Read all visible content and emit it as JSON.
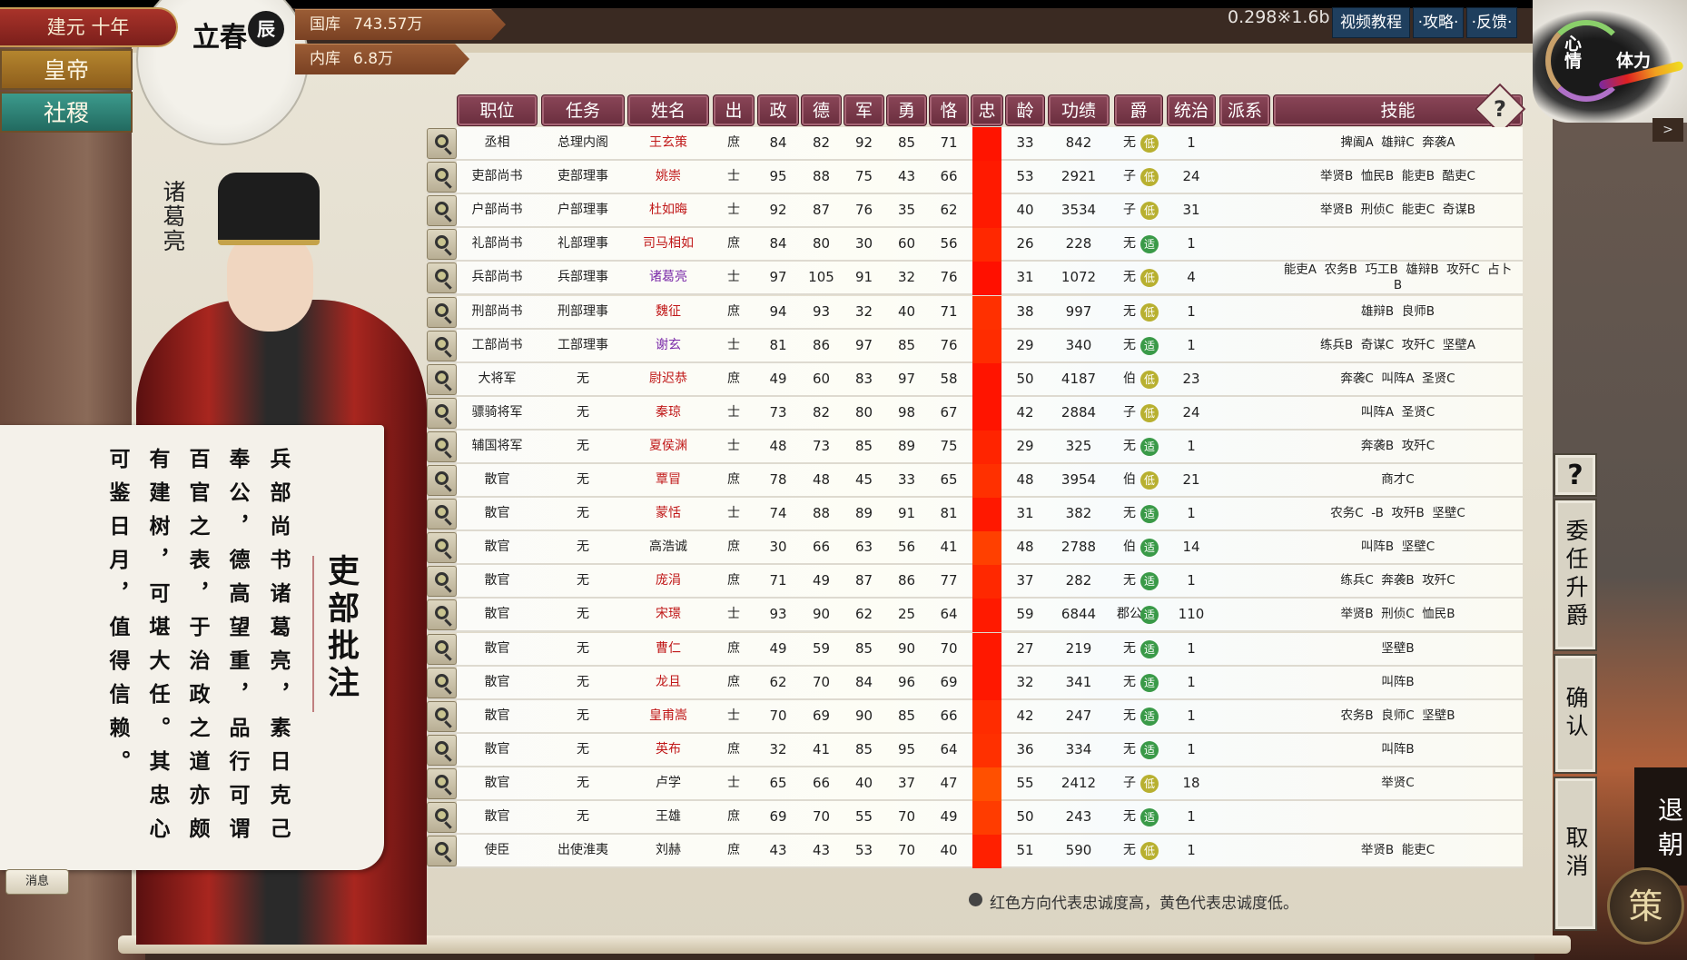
{
  "header": {
    "era": "建元 十年",
    "solar_term": "立春",
    "hour": "辰",
    "treasury": {
      "label": "国库",
      "value": "743.57万"
    },
    "inner_treasury": {
      "label": "内库",
      "value": "6.8万"
    },
    "version": "0.298※1.6b",
    "buttons": [
      "视频教程",
      "·攻略·",
      "·反馈·"
    ],
    "mood_label": "心情",
    "stamina_label": "体力"
  },
  "sidebar": {
    "emperor": "皇帝",
    "state": "社稷"
  },
  "official": {
    "name": "诸葛亮"
  },
  "memo": {
    "title": "吏部批注",
    "columns": [
      "兵部尚书诸葛亮，素日克己",
      "奉公，德高望重，品行可谓",
      "百官之表，于治政之道亦颇",
      "有建树，可堪大任。其忠心",
      "可鉴日月，值得信赖。"
    ]
  },
  "message_button": "消息",
  "table": {
    "headers": [
      "职位",
      "任务",
      "姓名",
      "出",
      "政",
      "德",
      "军",
      "勇",
      "恪",
      "忠",
      "龄",
      "功绩",
      "爵",
      "统治",
      "派系",
      "技能"
    ],
    "help": "?",
    "badge_colors": {
      "低": "#b8b030",
      "适": "#3a9a48"
    },
    "rows": [
      {
        "position": "丞相",
        "task": "总理内阁",
        "name": "王玄策",
        "name_color": "#c01818",
        "origin": "庶",
        "zheng": "84",
        "de": "82",
        "jun": "92",
        "yong": "85",
        "ke": "71",
        "loyalty_color": "#ff1400",
        "age": "33",
        "merit": "842",
        "rank": "无",
        "badge": "低",
        "rule": "1",
        "faction": "",
        "skills": "捭阖A  雄辩C  奔袭A"
      },
      {
        "position": "吏部尚书",
        "task": "吏部理事",
        "name": "姚崇",
        "name_color": "#c01818",
        "origin": "士",
        "zheng": "95",
        "de": "88",
        "jun": "75",
        "yong": "43",
        "ke": "66",
        "loyalty_color": "#ff1a00",
        "age": "53",
        "merit": "2921",
        "rank": "子",
        "badge": "低",
        "rule": "24",
        "faction": "",
        "skills": "举贤B  恤民B  能吏B  酷吏C"
      },
      {
        "position": "户部尚书",
        "task": "户部理事",
        "name": "杜如晦",
        "name_color": "#c01818",
        "origin": "士",
        "zheng": "92",
        "de": "87",
        "jun": "76",
        "yong": "35",
        "ke": "62",
        "loyalty_color": "#ff1a00",
        "age": "40",
        "merit": "3534",
        "rank": "子",
        "badge": "低",
        "rule": "31",
        "faction": "",
        "skills": "举贤B  刑侦C  能吏C  奇谋B"
      },
      {
        "position": "礼部尚书",
        "task": "礼部理事",
        "name": "司马相如",
        "name_color": "#c01818",
        "origin": "庶",
        "zheng": "84",
        "de": "80",
        "jun": "30",
        "yong": "60",
        "ke": "56",
        "loyalty_color": "#ff2800",
        "age": "26",
        "merit": "228",
        "rank": "无",
        "badge": "适",
        "rule": "1",
        "faction": "",
        "skills": ""
      },
      {
        "position": "兵部尚书",
        "task": "兵部理事",
        "name": "诸葛亮",
        "name_color": "#7a2aa8",
        "origin": "士",
        "zheng": "97",
        "de": "105",
        "jun": "91",
        "yong": "32",
        "ke": "76",
        "loyalty_color": "#ff1000",
        "age": "31",
        "merit": "1072",
        "rank": "无",
        "badge": "低",
        "rule": "4",
        "faction": "",
        "skills": "能吏A  农务B  巧工B  雄辩B  攻歼C  占卜B"
      },
      {
        "position": "刑部尚书",
        "task": "刑部理事",
        "name": "魏征",
        "name_color": "#c01818",
        "origin": "庶",
        "zheng": "94",
        "de": "93",
        "jun": "32",
        "yong": "40",
        "ke": "71",
        "loyalty_color": "#ff3000",
        "age": "38",
        "merit": "997",
        "rank": "无",
        "badge": "低",
        "rule": "1",
        "faction": "",
        "skills": "雄辩B  良师B"
      },
      {
        "position": "工部尚书",
        "task": "工部理事",
        "name": "谢玄",
        "name_color": "#7a2aa8",
        "origin": "士",
        "zheng": "81",
        "de": "86",
        "jun": "97",
        "yong": "85",
        "ke": "76",
        "loyalty_color": "#ff2c00",
        "age": "29",
        "merit": "340",
        "rank": "无",
        "badge": "适",
        "rule": "1",
        "faction": "",
        "skills": "练兵B  奇谋C  攻歼C  坚壁A"
      },
      {
        "position": "大将军",
        "task": "无",
        "name": "尉迟恭",
        "name_color": "#c01818",
        "origin": "庶",
        "zheng": "49",
        "de": "60",
        "jun": "83",
        "yong": "97",
        "ke": "58",
        "loyalty_color": "#ff1400",
        "age": "50",
        "merit": "4187",
        "rank": "伯",
        "badge": "低",
        "rule": "23",
        "faction": "",
        "skills": "奔袭C  叫阵A  圣贤C"
      },
      {
        "position": "骠骑将军",
        "task": "无",
        "name": "秦琼",
        "name_color": "#c01818",
        "origin": "士",
        "zheng": "73",
        "de": "82",
        "jun": "80",
        "yong": "98",
        "ke": "67",
        "loyalty_color": "#ff1400",
        "age": "42",
        "merit": "2884",
        "rank": "子",
        "badge": "低",
        "rule": "24",
        "faction": "",
        "skills": "叫阵A  圣贤C"
      },
      {
        "position": "辅国将军",
        "task": "无",
        "name": "夏侯渊",
        "name_color": "#c01818",
        "origin": "士",
        "zheng": "48",
        "de": "73",
        "jun": "85",
        "yong": "89",
        "ke": "75",
        "loyalty_color": "#ff2400",
        "age": "29",
        "merit": "325",
        "rank": "无",
        "badge": "适",
        "rule": "1",
        "faction": "",
        "skills": "奔袭B  攻歼C"
      },
      {
        "position": "散官",
        "task": "无",
        "name": "覃冒",
        "name_color": "#c01818",
        "origin": "庶",
        "zheng": "78",
        "de": "48",
        "jun": "45",
        "yong": "33",
        "ke": "65",
        "loyalty_color": "#ff3000",
        "age": "48",
        "merit": "3954",
        "rank": "伯",
        "badge": "低",
        "rule": "21",
        "faction": "",
        "skills": "商才C"
      },
      {
        "position": "散官",
        "task": "无",
        "name": "蒙恬",
        "name_color": "#c01818",
        "origin": "士",
        "zheng": "74",
        "de": "88",
        "jun": "89",
        "yong": "91",
        "ke": "81",
        "loyalty_color": "#ff1800",
        "age": "31",
        "merit": "382",
        "rank": "无",
        "badge": "适",
        "rule": "1",
        "faction": "",
        "skills": "农务C  -B  攻歼B  坚壁C"
      },
      {
        "position": "散官",
        "task": "无",
        "name": "高浩诚",
        "name_color": "#222222",
        "origin": "庶",
        "zheng": "30",
        "de": "66",
        "jun": "63",
        "yong": "56",
        "ke": "41",
        "loyalty_color": "#ff4000",
        "age": "48",
        "merit": "2788",
        "rank": "伯",
        "badge": "适",
        "rule": "14",
        "faction": "",
        "skills": "叫阵B  坚壁C"
      },
      {
        "position": "散官",
        "task": "无",
        "name": "庞涓",
        "name_color": "#c01818",
        "origin": "庶",
        "zheng": "71",
        "de": "49",
        "jun": "87",
        "yong": "86",
        "ke": "77",
        "loyalty_color": "#ff2800",
        "age": "37",
        "merit": "282",
        "rank": "无",
        "badge": "适",
        "rule": "1",
        "faction": "",
        "skills": "练兵C  奔袭B  攻歼C"
      },
      {
        "position": "散官",
        "task": "无",
        "name": "宋璟",
        "name_color": "#c01818",
        "origin": "士",
        "zheng": "93",
        "de": "90",
        "jun": "62",
        "yong": "25",
        "ke": "64",
        "loyalty_color": "#ff1a00",
        "age": "59",
        "merit": "6844",
        "rank": "郡公",
        "badge": "适",
        "rule": "110",
        "faction": "",
        "skills": "举贤B  刑侦C  恤民B"
      },
      {
        "position": "散官",
        "task": "无",
        "name": "曹仁",
        "name_color": "#c01818",
        "origin": "庶",
        "zheng": "49",
        "de": "59",
        "jun": "85",
        "yong": "90",
        "ke": "70",
        "loyalty_color": "#ff1800",
        "age": "27",
        "merit": "219",
        "rank": "无",
        "badge": "适",
        "rule": "1",
        "faction": "",
        "skills": "坚壁B"
      },
      {
        "position": "散官",
        "task": "无",
        "name": "龙且",
        "name_color": "#c01818",
        "origin": "庶",
        "zheng": "62",
        "de": "70",
        "jun": "84",
        "yong": "96",
        "ke": "69",
        "loyalty_color": "#ff1800",
        "age": "32",
        "merit": "341",
        "rank": "无",
        "badge": "适",
        "rule": "1",
        "faction": "",
        "skills": "叫阵B"
      },
      {
        "position": "散官",
        "task": "无",
        "name": "皇甫嵩",
        "name_color": "#c01818",
        "origin": "士",
        "zheng": "70",
        "de": "69",
        "jun": "90",
        "yong": "85",
        "ke": "66",
        "loyalty_color": "#ff2c00",
        "age": "42",
        "merit": "247",
        "rank": "无",
        "badge": "适",
        "rule": "1",
        "faction": "",
        "skills": "农务B  良师C  坚壁B"
      },
      {
        "position": "散官",
        "task": "无",
        "name": "英布",
        "name_color": "#c01818",
        "origin": "庶",
        "zheng": "32",
        "de": "41",
        "jun": "85",
        "yong": "95",
        "ke": "64",
        "loyalty_color": "#ff3000",
        "age": "36",
        "merit": "334",
        "rank": "无",
        "badge": "适",
        "rule": "1",
        "faction": "",
        "skills": "叫阵B"
      },
      {
        "position": "散官",
        "task": "无",
        "name": "卢学",
        "name_color": "#222222",
        "origin": "士",
        "zheng": "65",
        "de": "66",
        "jun": "40",
        "yong": "37",
        "ke": "47",
        "loyalty_color": "#ff5000",
        "age": "55",
        "merit": "2412",
        "rank": "子",
        "badge": "低",
        "rule": "18",
        "faction": "",
        "skills": "举贤C"
      },
      {
        "position": "散官",
        "task": "无",
        "name": "王雄",
        "name_color": "#222222",
        "origin": "庶",
        "zheng": "69",
        "de": "70",
        "jun": "55",
        "yong": "70",
        "ke": "49",
        "loyalty_color": "#ff3c00",
        "age": "50",
        "merit": "243",
        "rank": "无",
        "badge": "适",
        "rule": "1",
        "faction": "",
        "skills": ""
      },
      {
        "position": "使臣",
        "task": "出使淮夷",
        "name": "刘赫",
        "name_color": "#222222",
        "origin": "庶",
        "zheng": "43",
        "de": "43",
        "jun": "53",
        "yong": "70",
        "ke": "40",
        "loyalty_color": "#ff2000",
        "age": "51",
        "merit": "590",
        "rank": "无",
        "badge": "低",
        "rule": "1",
        "faction": "",
        "skills": "举贤B  能吏C"
      }
    ],
    "footnote": "红色方向代表忠诚度高，黄色代表忠诚度低。"
  },
  "right_panel": {
    "help": "?",
    "appoint": "委任升爵",
    "confirm": "确认",
    "cancel": "取消",
    "retire": "退朝",
    "strategy": "策"
  }
}
